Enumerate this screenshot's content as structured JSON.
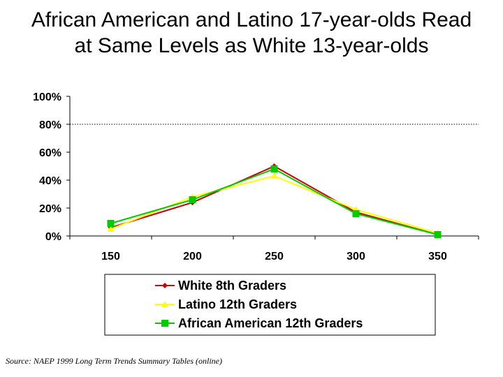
{
  "title": {
    "line1": "African American and Latino 17-year-olds Read",
    "line2": "at Same Levels as White 13-year-olds"
  },
  "source": "Source: NAEP 1999 Long Term Trends Summary Tables (online)",
  "chart_data": {
    "type": "line",
    "categories": [
      "150",
      "200",
      "250",
      "300",
      "350"
    ],
    "ylim": [
      0,
      100
    ],
    "yticks": [
      "0%",
      "20%",
      "40%",
      "60%",
      "80%",
      "100%"
    ],
    "reference_line": 80,
    "series": [
      {
        "name": "White 8th Graders",
        "color": "#cc0000",
        "marker": "diamond",
        "values": [
          6,
          24,
          50,
          17,
          1
        ]
      },
      {
        "name": "Latino 12th Graders",
        "color": "#ffff00",
        "marker": "triangle",
        "values": [
          5,
          28,
          43,
          19,
          2
        ]
      },
      {
        "name": "African American 12th Graders",
        "color": "#00cc00",
        "marker": "square",
        "values": [
          9,
          26,
          48,
          16,
          1
        ]
      }
    ]
  }
}
